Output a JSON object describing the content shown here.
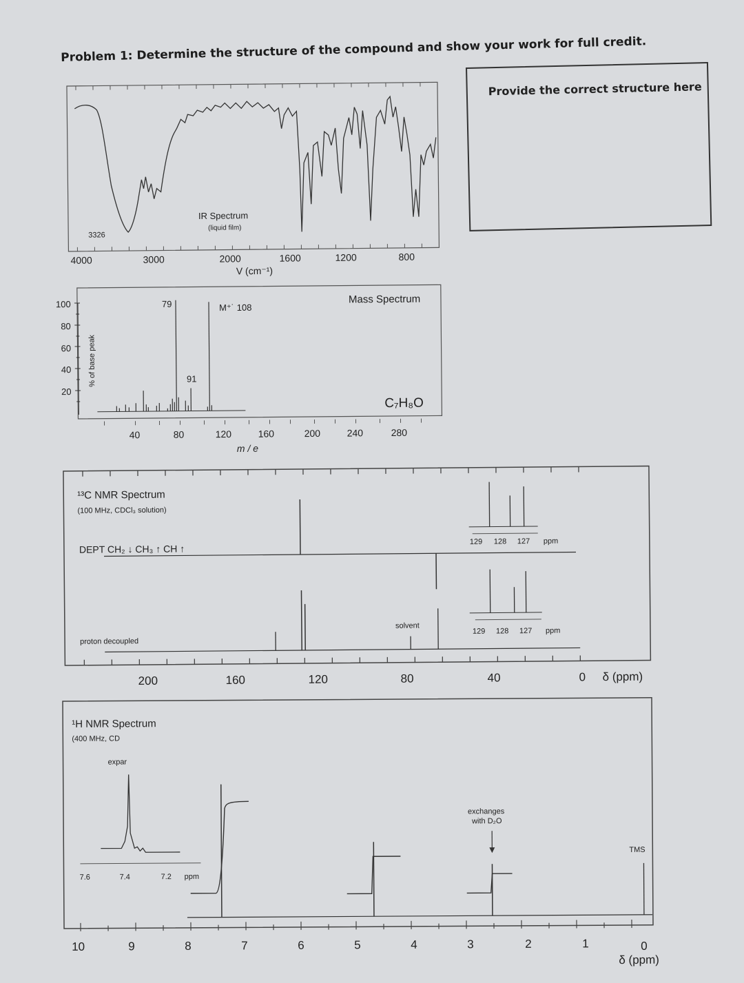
{
  "problem": {
    "title": "Problem 1: Determine the structure of the compound and show your work for full credit.",
    "answer_prompt": "Provide the correct structure here"
  },
  "ir": {
    "title": "IR Spectrum",
    "subtitle": "(liquid film)",
    "peak_label": "3326",
    "x_ticks": [
      "4000",
      "3000",
      "2000",
      "1600",
      "1200",
      "800"
    ],
    "x_label": "V  (cm⁻¹)"
  },
  "ms": {
    "title": "Mass Spectrum",
    "formula": "C₇H₈O",
    "y_label": "% of base peak",
    "y_ticks": [
      "100",
      "80",
      "60",
      "40",
      "20"
    ],
    "x_ticks": [
      "40",
      "80",
      "120",
      "160",
      "200",
      "240",
      "280"
    ],
    "x_label": "m / e",
    "peak_labels": [
      "79",
      "91"
    ],
    "molecular_ion": "M⁺˙  108"
  },
  "c13": {
    "title": "¹³C NMR Spectrum",
    "subtitle": "(100 MHz, CDCl₃ solution)",
    "dept_label": "DEPT  CH₂ ↓  CH₃ ↑  CH ↑",
    "decoupled_label": "proton decoupled",
    "solvent_label": "solvent",
    "inset_ticks": [
      "129",
      "128",
      "127",
      "ppm"
    ],
    "x_ticks": [
      "200",
      "160",
      "120",
      "80",
      "40",
      "0"
    ],
    "x_unit": "δ (ppm)"
  },
  "h1": {
    "title": "¹H NMR Spectrum",
    "subtitle": "(400 MHz, CD",
    "expand_label": "expar",
    "inset_ticks": [
      "7.6",
      "7.4",
      "7.2",
      "ppm"
    ],
    "exchange_label_1": "exchanges",
    "exchange_label_2": "with D₂O",
    "tms_label": "TMS",
    "x_ticks": [
      "10",
      "9",
      "8",
      "7",
      "6",
      "5",
      "4",
      "3",
      "2",
      "1",
      "0"
    ],
    "x_unit": "δ (ppm)"
  }
}
